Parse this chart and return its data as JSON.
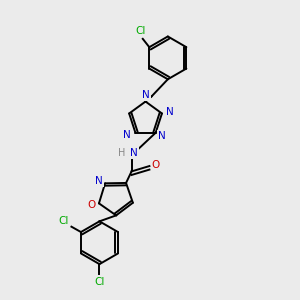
{
  "background_color": "#ebebeb",
  "atom_color_N": "#0000cc",
  "atom_color_O": "#cc0000",
  "atom_color_Cl": "#00aa00",
  "atom_color_H": "#888888",
  "bond_color": "#000000",
  "bond_width": 1.4,
  "figsize": [
    3.0,
    3.0
  ],
  "dpi": 100,
  "xlim": [
    0,
    10
  ],
  "ylim": [
    0,
    10
  ]
}
